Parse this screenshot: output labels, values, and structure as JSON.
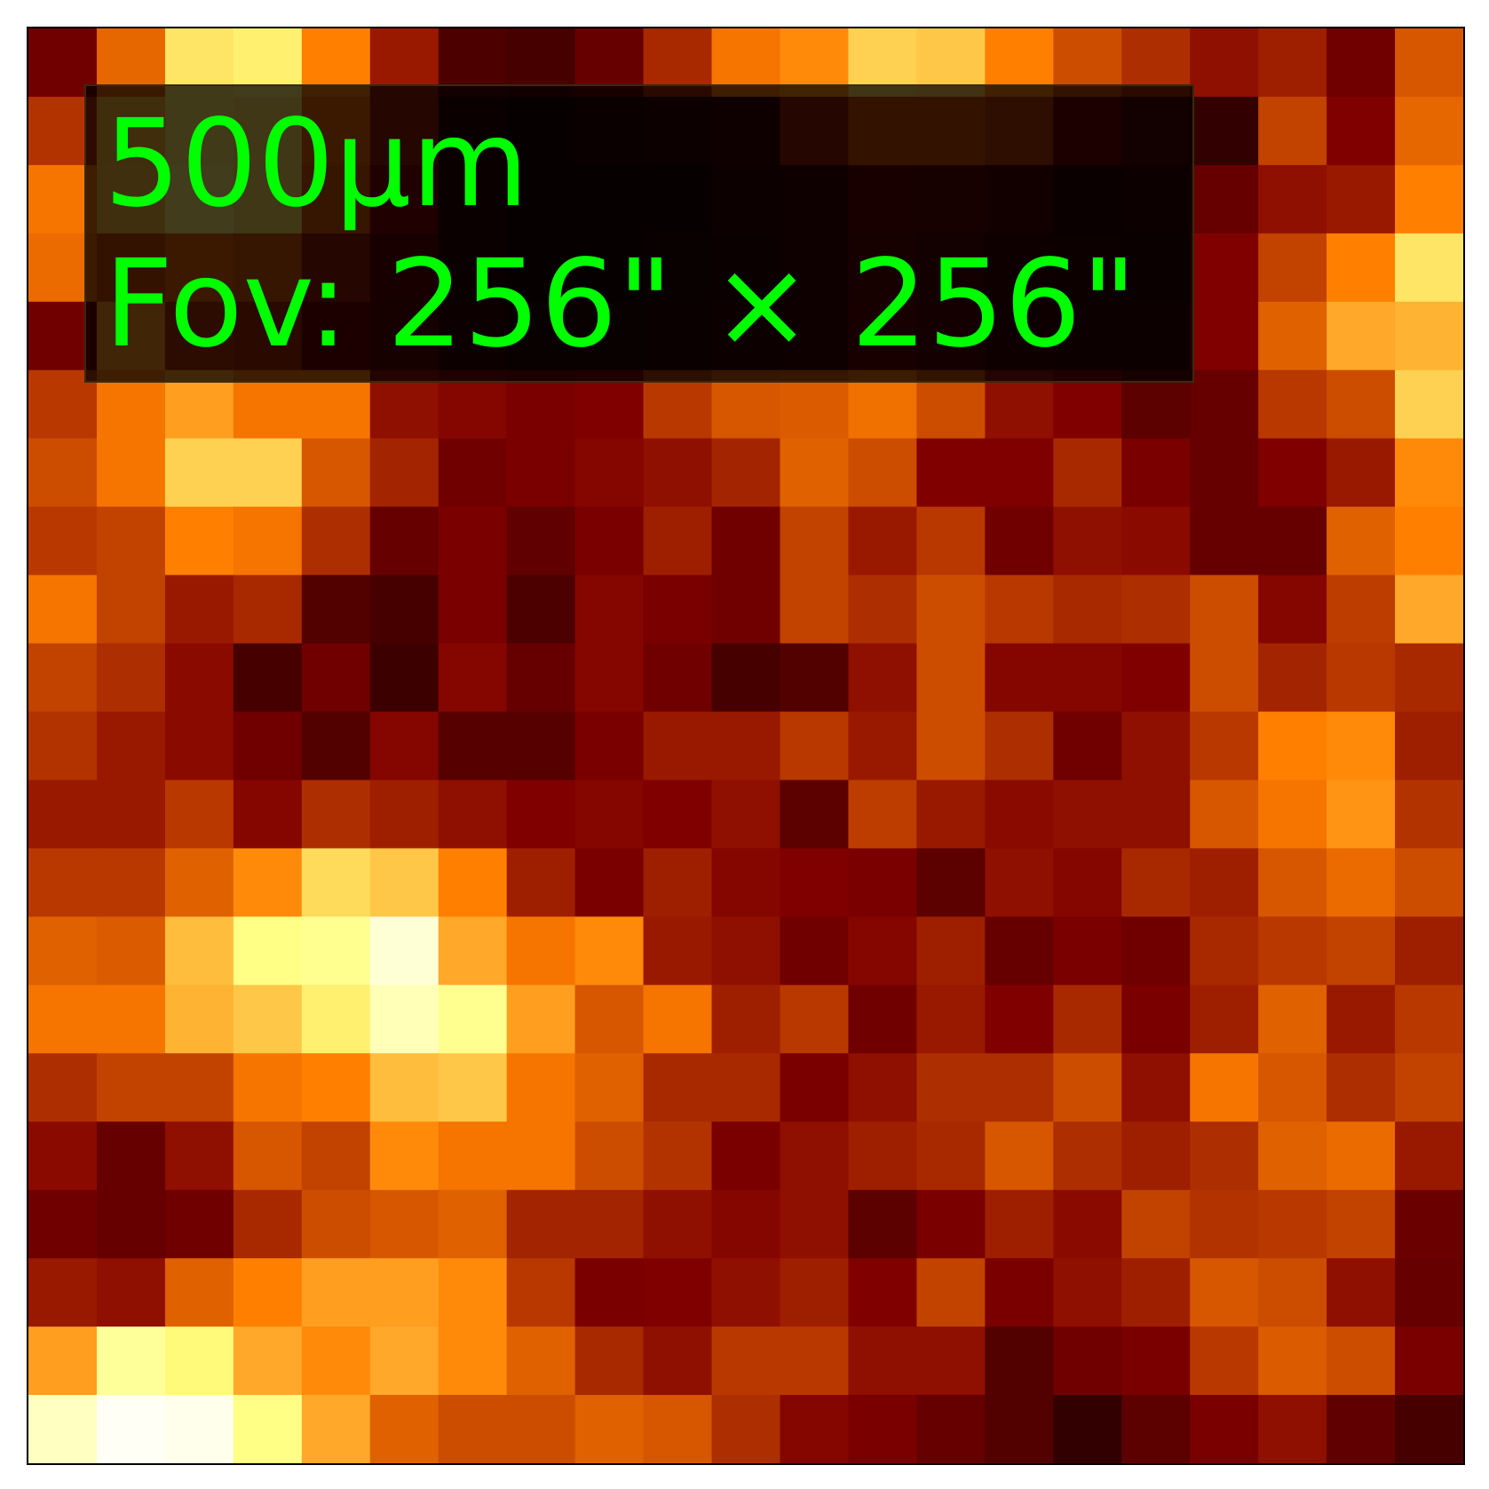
{
  "image": {
    "wavelength_label": "500μm",
    "fov_label": "Fov: 256\" × 256\"",
    "label_color": "#00ff00",
    "colormap": "afmhot",
    "grid": {
      "rows": 21,
      "cols": 21,
      "intensity": [
        [
          0.22,
          0.45,
          0.7,
          0.72,
          0.5,
          0.3,
          0.15,
          0.14,
          0.2,
          0.33,
          0.48,
          0.52,
          0.66,
          0.64,
          0.5,
          0.4,
          0.34,
          0.28,
          0.31,
          0.22,
          0.42
        ],
        [
          0.35,
          0.6,
          0.7,
          0.68,
          0.45,
          0.3,
          0.08,
          0.06,
          0.08,
          0.1,
          0.12,
          0.3,
          0.4,
          0.4,
          0.36,
          0.22,
          0.15,
          0.1,
          0.38,
          0.25,
          0.45
        ],
        [
          0.48,
          0.62,
          0.72,
          0.68,
          0.42,
          0.25,
          0.08,
          0.06,
          0.06,
          0.06,
          0.1,
          0.12,
          0.2,
          0.18,
          0.14,
          0.08,
          0.1,
          0.2,
          0.28,
          0.3,
          0.5
        ],
        [
          0.46,
          0.4,
          0.45,
          0.42,
          0.3,
          0.2,
          0.08,
          0.05,
          0.06,
          0.07,
          0.09,
          0.12,
          0.18,
          0.15,
          0.12,
          0.1,
          0.08,
          0.25,
          0.38,
          0.5,
          0.7
        ],
        [
          0.22,
          0.55,
          0.35,
          0.32,
          0.22,
          0.18,
          0.1,
          0.07,
          0.07,
          0.08,
          0.1,
          0.12,
          0.2,
          0.16,
          0.12,
          0.1,
          0.1,
          0.25,
          0.44,
          0.58,
          0.6
        ],
        [
          0.36,
          0.48,
          0.56,
          0.48,
          0.48,
          0.28,
          0.26,
          0.24,
          0.25,
          0.36,
          0.42,
          0.43,
          0.47,
          0.4,
          0.28,
          0.25,
          0.18,
          0.2,
          0.36,
          0.4,
          0.66
        ],
        [
          0.4,
          0.48,
          0.66,
          0.66,
          0.42,
          0.32,
          0.22,
          0.24,
          0.26,
          0.28,
          0.32,
          0.44,
          0.4,
          0.25,
          0.25,
          0.33,
          0.24,
          0.2,
          0.25,
          0.3,
          0.52
        ],
        [
          0.36,
          0.38,
          0.5,
          0.48,
          0.34,
          0.2,
          0.24,
          0.19,
          0.24,
          0.31,
          0.22,
          0.38,
          0.3,
          0.36,
          0.22,
          0.28,
          0.27,
          0.2,
          0.2,
          0.44,
          0.5
        ],
        [
          0.48,
          0.38,
          0.3,
          0.33,
          0.16,
          0.14,
          0.24,
          0.15,
          0.26,
          0.24,
          0.22,
          0.38,
          0.34,
          0.4,
          0.36,
          0.33,
          0.34,
          0.4,
          0.26,
          0.37,
          0.58
        ],
        [
          0.38,
          0.34,
          0.27,
          0.14,
          0.22,
          0.12,
          0.26,
          0.2,
          0.26,
          0.22,
          0.14,
          0.16,
          0.28,
          0.4,
          0.26,
          0.26,
          0.25,
          0.4,
          0.32,
          0.36,
          0.33
        ],
        [
          0.35,
          0.3,
          0.27,
          0.22,
          0.16,
          0.26,
          0.17,
          0.17,
          0.24,
          0.3,
          0.3,
          0.36,
          0.3,
          0.4,
          0.34,
          0.22,
          0.28,
          0.36,
          0.5,
          0.52,
          0.31
        ],
        [
          0.3,
          0.3,
          0.36,
          0.26,
          0.34,
          0.31,
          0.28,
          0.25,
          0.26,
          0.25,
          0.28,
          0.18,
          0.37,
          0.3,
          0.27,
          0.28,
          0.28,
          0.42,
          0.48,
          0.54,
          0.35
        ],
        [
          0.36,
          0.36,
          0.44,
          0.52,
          0.68,
          0.64,
          0.5,
          0.31,
          0.24,
          0.31,
          0.26,
          0.25,
          0.24,
          0.18,
          0.28,
          0.26,
          0.33,
          0.31,
          0.42,
          0.46,
          0.4
        ],
        [
          0.44,
          0.43,
          0.62,
          0.76,
          0.78,
          0.92,
          0.58,
          0.48,
          0.52,
          0.3,
          0.28,
          0.22,
          0.26,
          0.31,
          0.2,
          0.24,
          0.22,
          0.33,
          0.36,
          0.38,
          0.31
        ],
        [
          0.48,
          0.48,
          0.6,
          0.64,
          0.72,
          0.86,
          0.78,
          0.56,
          0.42,
          0.48,
          0.31,
          0.36,
          0.22,
          0.3,
          0.25,
          0.33,
          0.24,
          0.31,
          0.44,
          0.3,
          0.36
        ],
        [
          0.34,
          0.38,
          0.38,
          0.48,
          0.5,
          0.62,
          0.64,
          0.48,
          0.44,
          0.33,
          0.33,
          0.24,
          0.28,
          0.34,
          0.34,
          0.4,
          0.28,
          0.48,
          0.42,
          0.34,
          0.38
        ],
        [
          0.27,
          0.2,
          0.28,
          0.42,
          0.38,
          0.52,
          0.48,
          0.48,
          0.4,
          0.35,
          0.24,
          0.28,
          0.31,
          0.33,
          0.42,
          0.34,
          0.31,
          0.34,
          0.44,
          0.46,
          0.3
        ],
        [
          0.22,
          0.2,
          0.22,
          0.33,
          0.4,
          0.42,
          0.44,
          0.32,
          0.32,
          0.28,
          0.26,
          0.28,
          0.18,
          0.24,
          0.31,
          0.27,
          0.38,
          0.35,
          0.36,
          0.38,
          0.21
        ],
        [
          0.3,
          0.28,
          0.44,
          0.5,
          0.56,
          0.56,
          0.52,
          0.36,
          0.24,
          0.25,
          0.28,
          0.31,
          0.25,
          0.38,
          0.24,
          0.28,
          0.31,
          0.42,
          0.4,
          0.28,
          0.2
        ],
        [
          0.56,
          0.8,
          0.74,
          0.58,
          0.52,
          0.58,
          0.52,
          0.44,
          0.33,
          0.28,
          0.36,
          0.36,
          0.28,
          0.28,
          0.16,
          0.22,
          0.24,
          0.36,
          0.43,
          0.4,
          0.24
        ],
        [
          0.88,
          0.98,
          0.96,
          0.76,
          0.58,
          0.44,
          0.4,
          0.4,
          0.44,
          0.42,
          0.34,
          0.26,
          0.24,
          0.2,
          0.16,
          0.1,
          0.18,
          0.24,
          0.28,
          0.19,
          0.14
        ]
      ]
    }
  }
}
